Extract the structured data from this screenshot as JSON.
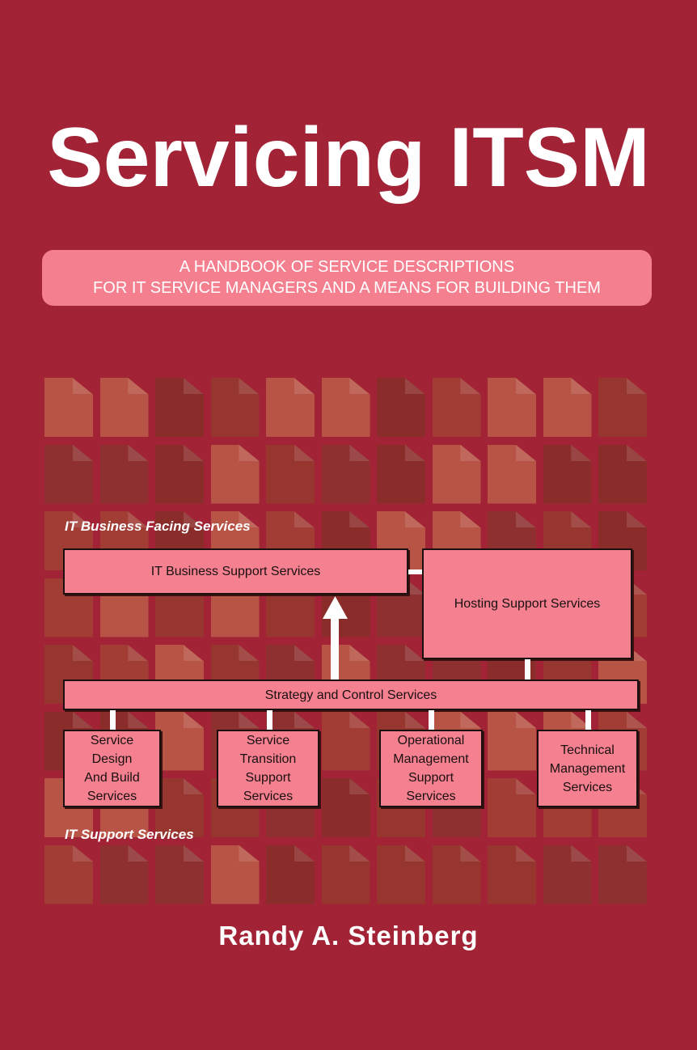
{
  "cover": {
    "title": "Servicing ITSM",
    "subtitle_line1": "A HANDBOOK OF SERVICE DESCRIPTIONS",
    "subtitle_line2": "FOR IT SERVICE MANAGERS AND A MEANS FOR BUILDING THEM",
    "author": "Randy A. Steinberg",
    "colors": {
      "background": "#a22336",
      "pill": "#f47f8f",
      "box": "#f48090"
    }
  },
  "diagram": {
    "top_label": "IT Business Facing Services",
    "bottom_label": "IT Support Services",
    "business_support": "IT Business Support Services",
    "hosting": "Hosting Support Services",
    "strategy": "Strategy and Control Services",
    "bottom_boxes": [
      "Service\nDesign\nAnd Build\nServices",
      "Service\nTransition\nSupport\nServices",
      "Operational\nManagement\nSupport\nServices",
      "Technical\nManagement\nServices"
    ]
  }
}
